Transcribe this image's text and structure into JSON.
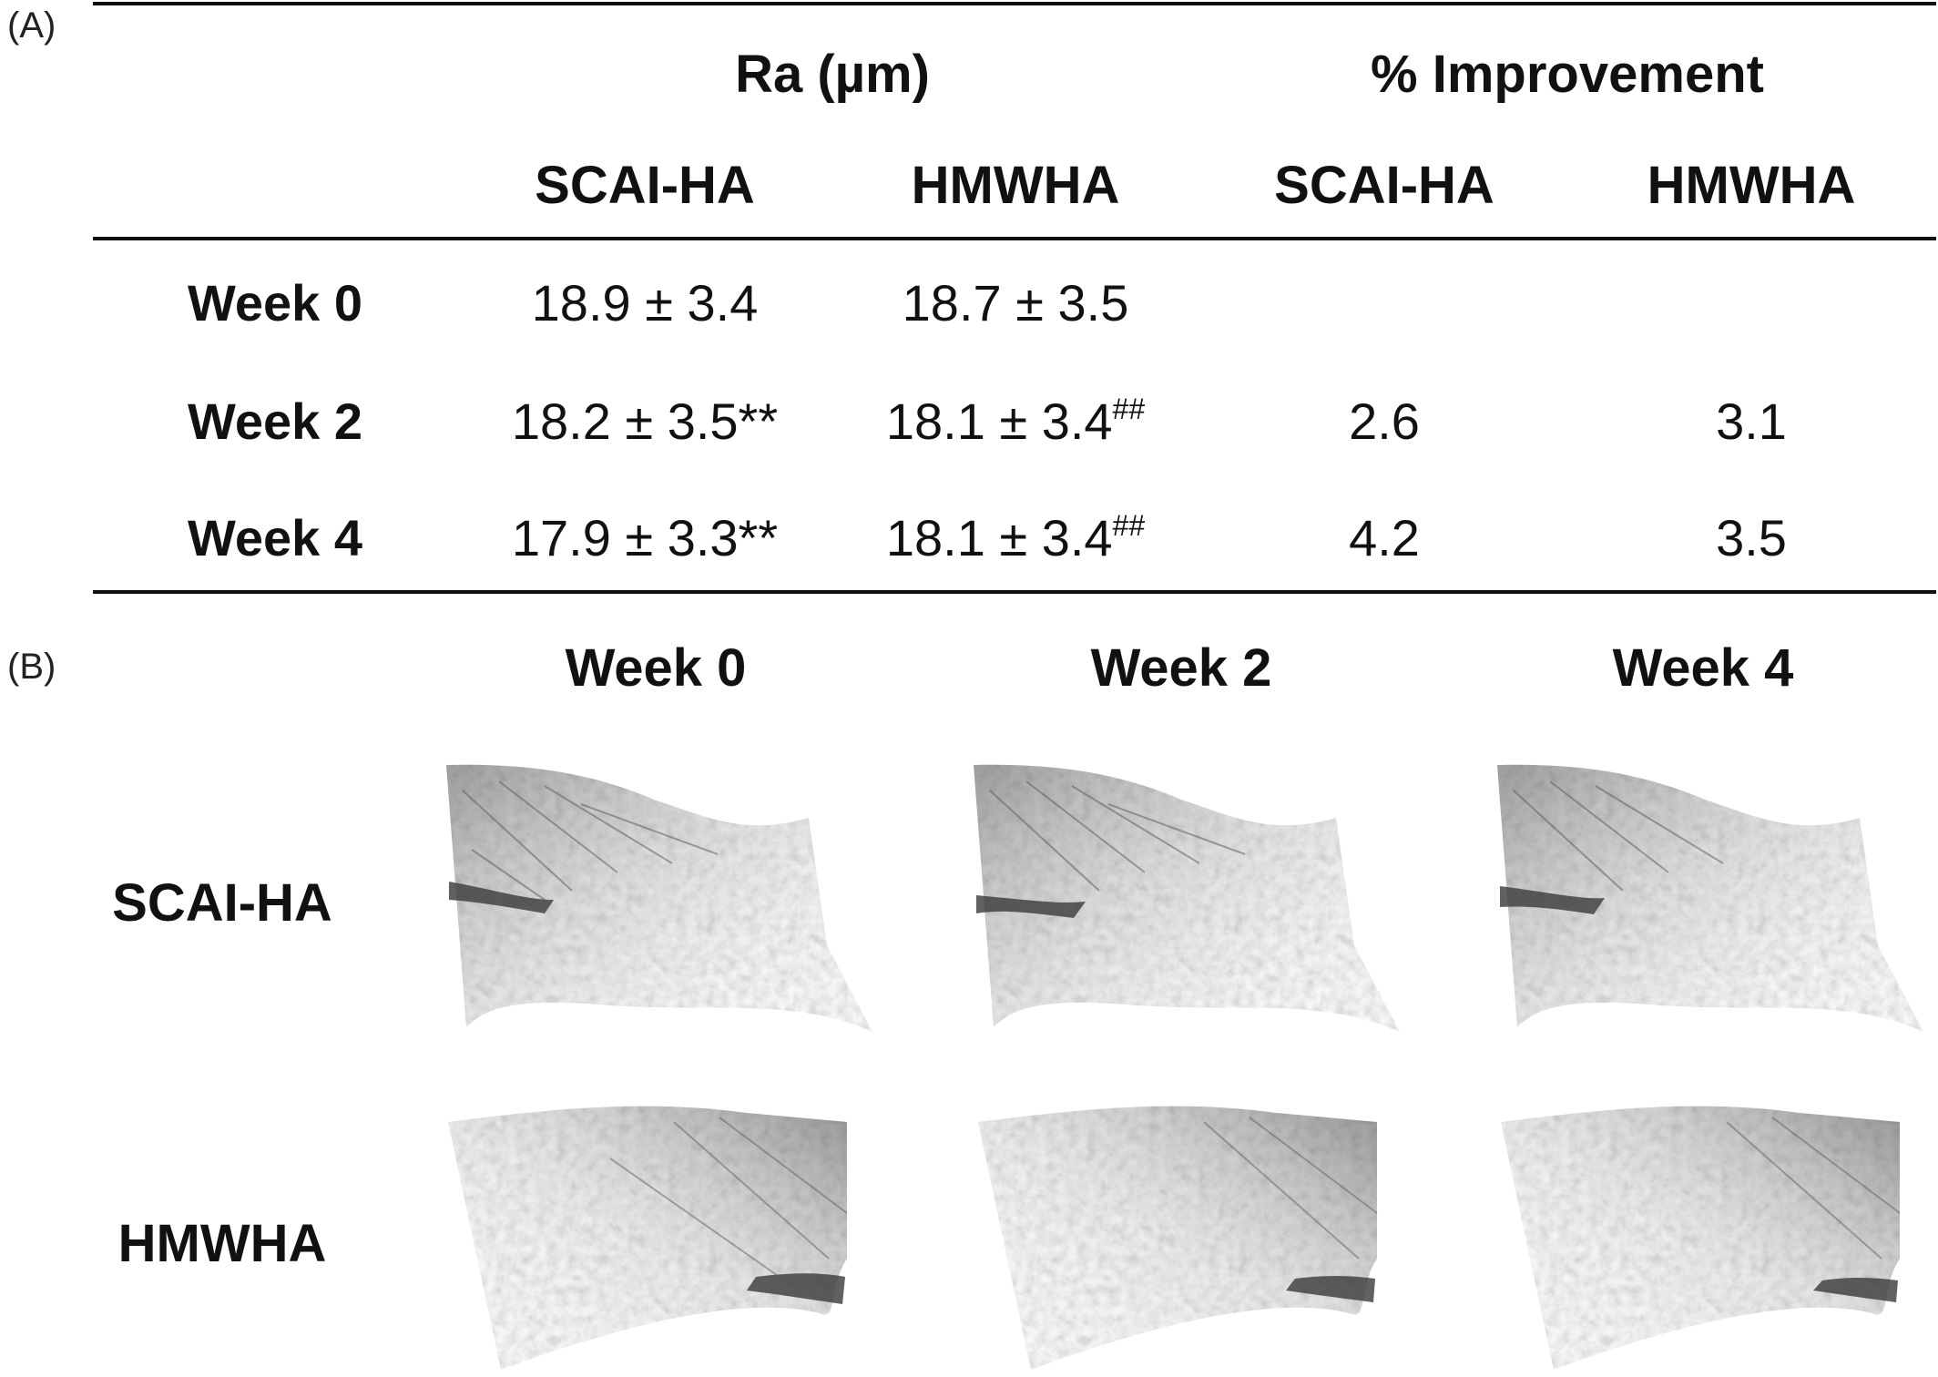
{
  "panel_a": {
    "label": "(A)",
    "header": {
      "group_ra": "Ra (µm)",
      "group_improvement": "% Improvement",
      "sub_cols": [
        "SCAI-HA",
        "HMWHA",
        "SCAI-HA",
        "HMWHA"
      ]
    },
    "rows": [
      {
        "label": "Week 0",
        "scai_ra": "18.9 ± 3.4",
        "scai_sig": "",
        "hmw_ra": "18.7 ± 3.5",
        "hmw_sig": "",
        "scai_imp": "",
        "hmw_imp": ""
      },
      {
        "label": "Week 2",
        "scai_ra": "18.2 ± 3.5**",
        "scai_sig": "",
        "hmw_ra": "18.1 ± 3.4",
        "hmw_sig": "##",
        "scai_imp": "2.6",
        "hmw_imp": "3.1"
      },
      {
        "label": "Week 4",
        "scai_ra": "17.9 ± 3.3**",
        "scai_sig": "",
        "hmw_ra": "18.1 ± 3.4",
        "hmw_sig": "##",
        "scai_imp": "4.2",
        "hmw_imp": "3.5"
      }
    ]
  },
  "panel_b": {
    "label": "(B)",
    "columns": [
      "Week 0",
      "Week 2",
      "Week 4"
    ],
    "rows": [
      "SCAI-HA",
      "HMWHA"
    ]
  }
}
